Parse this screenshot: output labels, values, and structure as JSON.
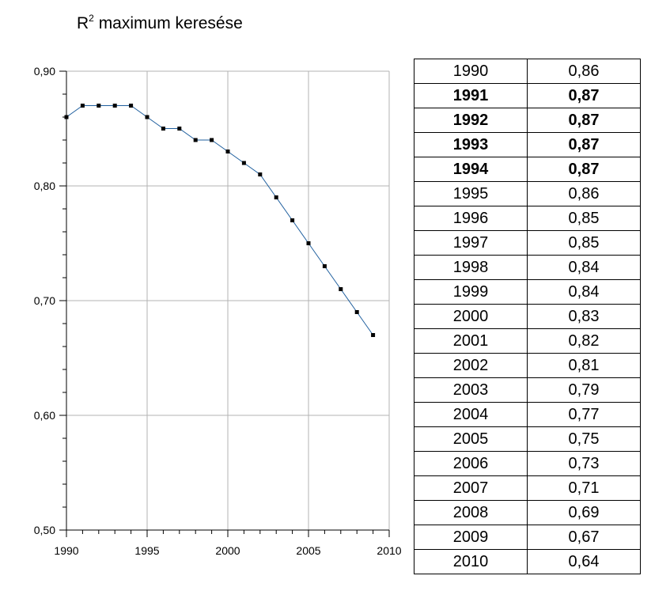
{
  "chart_data": {
    "type": "line",
    "title_main": "R",
    "title_sup": "2",
    "title_rest": " maximum keresése",
    "x": [
      1990,
      1991,
      1992,
      1993,
      1994,
      1995,
      1996,
      1997,
      1998,
      1999,
      2000,
      2001,
      2002,
      2003,
      2004,
      2005,
      2006,
      2007,
      2008,
      2009
    ],
    "values": [
      0.86,
      0.87,
      0.87,
      0.87,
      0.87,
      0.86,
      0.85,
      0.85,
      0.84,
      0.84,
      0.83,
      0.82,
      0.81,
      0.79,
      0.77,
      0.75,
      0.73,
      0.71,
      0.69,
      0.67
    ],
    "xlim": [
      1990,
      2010
    ],
    "ylim": [
      0.5,
      0.9
    ],
    "x_ticks": [
      1990,
      1995,
      2000,
      2005,
      2010
    ],
    "x_tick_labels": [
      "1990",
      "1995",
      "2000",
      "2005",
      "2010"
    ],
    "y_ticks": [
      0.5,
      0.6,
      0.7,
      0.8,
      0.9
    ],
    "y_tick_labels": [
      "0,50",
      "0,60",
      "0,70",
      "0,80",
      "0,90"
    ],
    "grid": true,
    "line_color": "#1f5f9e",
    "marker_color": "#000000",
    "grid_color": "#b3b3b3"
  },
  "table": {
    "rows": [
      {
        "year": "1990",
        "value": "0,86",
        "bold": false
      },
      {
        "year": "1991",
        "value": "0,87",
        "bold": true
      },
      {
        "year": "1992",
        "value": "0,87",
        "bold": true
      },
      {
        "year": "1993",
        "value": "0,87",
        "bold": true
      },
      {
        "year": "1994",
        "value": "0,87",
        "bold": true
      },
      {
        "year": "1995",
        "value": "0,86",
        "bold": false
      },
      {
        "year": "1996",
        "value": "0,85",
        "bold": false
      },
      {
        "year": "1997",
        "value": "0,85",
        "bold": false
      },
      {
        "year": "1998",
        "value": "0,84",
        "bold": false
      },
      {
        "year": "1999",
        "value": "0,84",
        "bold": false
      },
      {
        "year": "2000",
        "value": "0,83",
        "bold": false
      },
      {
        "year": "2001",
        "value": "0,82",
        "bold": false
      },
      {
        "year": "2002",
        "value": "0,81",
        "bold": false
      },
      {
        "year": "2003",
        "value": "0,79",
        "bold": false
      },
      {
        "year": "2004",
        "value": "0,77",
        "bold": false
      },
      {
        "year": "2005",
        "value": "0,75",
        "bold": false
      },
      {
        "year": "2006",
        "value": "0,73",
        "bold": false
      },
      {
        "year": "2007",
        "value": "0,71",
        "bold": false
      },
      {
        "year": "2008",
        "value": "0,69",
        "bold": false
      },
      {
        "year": "2009",
        "value": "0,67",
        "bold": false
      },
      {
        "year": "2010",
        "value": "0,64",
        "bold": false
      }
    ]
  }
}
